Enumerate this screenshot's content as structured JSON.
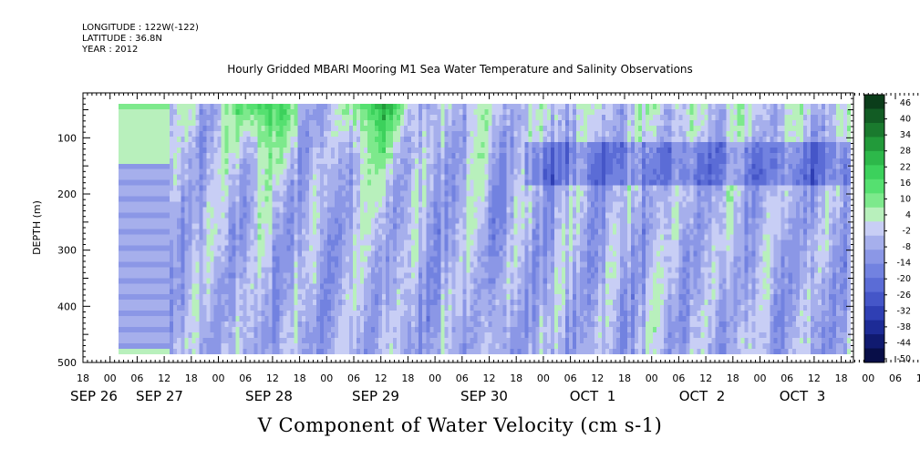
{
  "header": {
    "longitude": "LONGITUDE : 122W(-122)",
    "latitude": "LATITUDE : 36.8N",
    "year": "YEAR : 2012"
  },
  "chart_data": {
    "type": "heatmap",
    "title": "Hourly Gridded MBARI Mooring M1 Sea Water Temperature and Salinity Observations",
    "xlabel": "V Component of Water Velocity (cm s-1)",
    "ylabel": "DEPTH (m)",
    "ylim": [
      500,
      20
    ],
    "y_ticks": [
      100,
      200,
      300,
      400,
      500
    ],
    "x_hour_ticks": [
      "18",
      "00",
      "06",
      "12",
      "18",
      "00",
      "06",
      "12",
      "18",
      "00",
      "06",
      "12",
      "18",
      "00",
      "06",
      "12",
      "18",
      "00",
      "06",
      "12",
      "18",
      "00",
      "06",
      "12",
      "18",
      "00",
      "06",
      "12",
      "18",
      "00",
      "06",
      "12",
      "18"
    ],
    "x_day_labels": [
      "SEP 26",
      "SEP 27",
      "SEP 28",
      "SEP 29",
      "SEP 30",
      "OCT  1",
      "OCT  2",
      "OCT  3"
    ],
    "colorbar": {
      "labels": [
        "46",
        "40",
        "34",
        "28",
        "22",
        "16",
        "10",
        "4",
        "-2",
        "-8",
        "-14",
        "-20",
        "-26",
        "-32",
        "-38",
        "-44",
        "-50"
      ],
      "range": [
        -50,
        50
      ]
    }
  }
}
